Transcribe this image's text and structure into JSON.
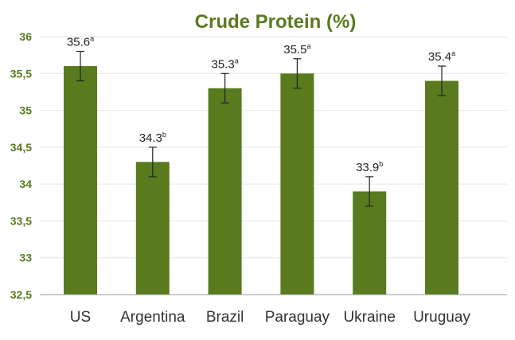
{
  "chart_data": {
    "type": "bar",
    "title": "Crude Protein (%)",
    "categories": [
      "US",
      "Argentina",
      "Brazil",
      "Paraguay",
      "Ukraine",
      "Uruguay"
    ],
    "values": [
      35.6,
      34.3,
      35.3,
      35.5,
      33.9,
      35.4
    ],
    "error": [
      0.2,
      0.2,
      0.2,
      0.2,
      0.2,
      0.2
    ],
    "value_labels": [
      "35.6",
      "34.3",
      "35.3",
      "35.5",
      "33.9",
      "35.4"
    ],
    "significance": [
      "a",
      "b",
      "a",
      "a",
      "b",
      "a"
    ],
    "y_ticks": [
      "32,5",
      "33",
      "33,5",
      "34",
      "34,5",
      "35",
      "35,5",
      "36"
    ],
    "ylim": [
      32.5,
      36
    ],
    "ytick_step": 0.5,
    "grid": true,
    "colors": {
      "bar": "#5a7a1e",
      "title": "#5a7a1e",
      "tick_label": "#5a7a1e",
      "category_label": "#333333",
      "grid": "#e6e6e6",
      "axis": "#999999"
    }
  }
}
